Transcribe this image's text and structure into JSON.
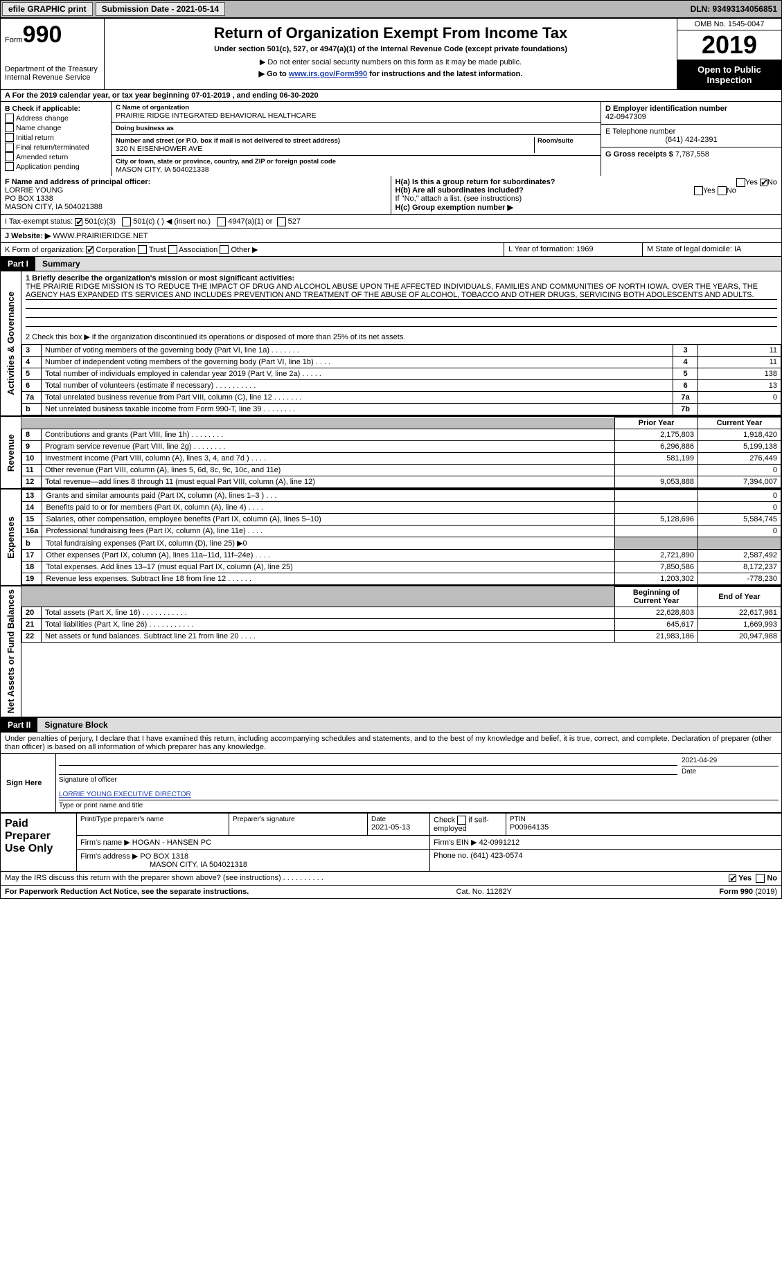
{
  "topbar": {
    "efile_btn": "efile GRAPHIC print",
    "submission_label": "Submission Date - 2021-05-14",
    "dln": "DLN: 93493134056851"
  },
  "header": {
    "form_word": "Form",
    "form_num": "990",
    "title": "Return of Organization Exempt From Income Tax",
    "subtitle": "Under section 501(c), 527, or 4947(a)(1) of the Internal Revenue Code (except private foundations)",
    "note1": "▶ Do not enter social security numbers on this form as it may be made public.",
    "note2_pre": "▶ Go to ",
    "note2_link": "www.irs.gov/Form990",
    "note2_post": " for instructions and the latest information.",
    "dept1": "Department of the Treasury",
    "dept2": "Internal Revenue Service",
    "omb": "OMB No. 1545-0047",
    "year": "2019",
    "public": "Open to Public Inspection"
  },
  "period": {
    "text_a": "A For the 2019 calendar year, or tax year beginning 07-01-2019",
    "text_b": " , and ending 06-30-2020"
  },
  "B": {
    "head": "B Check if applicable:",
    "opts": [
      "Address change",
      "Name change",
      "Initial return",
      "Final return/terminated",
      "Amended return",
      "Application pending"
    ]
  },
  "C": {
    "name_label": "C Name of organization",
    "name": "PRAIRIE RIDGE INTEGRATED BEHAVIORAL HEALTHCARE",
    "dba_label": "Doing business as",
    "dba": "",
    "addr_label": "Number and street (or P.O. box if mail is not delivered to street address)",
    "room_label": "Room/suite",
    "addr": "320 N EISENHOWER AVE",
    "city_label": "City or town, state or province, country, and ZIP or foreign postal code",
    "city": "MASON CITY, IA  504021338"
  },
  "D": {
    "ein_label": "D Employer identification number",
    "ein": "42-0947309",
    "phone_label": "E Telephone number",
    "phone": "(641) 424-2391",
    "gross_label": "G Gross receipts $",
    "gross": "7,787,558"
  },
  "F": {
    "label": "F  Name and address of principal officer:",
    "name": "LORRIE YOUNG",
    "addr1": "PO BOX 1338",
    "addr2": "MASON CITY, IA  504021388"
  },
  "H": {
    "a": "H(a)  Is this a group return for subordinates?",
    "a_yes": "Yes",
    "a_no": "No",
    "b": "H(b)  Are all subordinates included?",
    "b_yes": "Yes",
    "b_no": "No",
    "b_note": "If \"No,\" attach a list. (see instructions)",
    "c": "H(c)  Group exemption number ▶"
  },
  "I": {
    "label": "I    Tax-exempt status:",
    "o1": "501(c)(3)",
    "o2": "501(c) (  ) ◀ (insert no.)",
    "o3": "4947(a)(1) or",
    "o4": "527"
  },
  "J": {
    "label": "J   Website: ▶",
    "value": "WWW.PRAIRIERIDGE.NET"
  },
  "K": {
    "label": "K Form of organization:",
    "o1": "Corporation",
    "o2": "Trust",
    "o3": "Association",
    "o4": "Other ▶"
  },
  "LM": {
    "L": "L Year of formation: 1969",
    "M": "M State of legal domicile: IA"
  },
  "part1": {
    "label": "Part I",
    "title": "Summary"
  },
  "summary": {
    "line1_label": "1   Briefly describe the organization's mission or most significant activities:",
    "line1_text": "THE PRAIRIE RIDGE MISSION IS TO REDUCE THE IMPACT OF DRUG AND ALCOHOL ABUSE UPON THE AFFECTED INDIVIDUALS, FAMILIES AND COMMUNITIES OF NORTH IOWA. OVER THE YEARS, THE AGENCY HAS EXPANDED ITS SERVICES AND INCLUDES PREVENTION AND TREATMENT OF THE ABUSE OF ALCOHOL, TOBACCO AND OTHER DRUGS, SERVICING BOTH ADOLESCENTS AND ADULTS.",
    "line2": "2   Check this box ▶  if the organization discontinued its operations or disposed of more than 25% of its net assets.",
    "rows_top": [
      {
        "n": "3",
        "d": "Number of voting members of the governing body (Part VI, line 1a)   .    .    .    .    .    .    .",
        "b": "3",
        "v": "11"
      },
      {
        "n": "4",
        "d": "Number of independent voting members of the governing body (Part VI, line 1b)   .    .    .    .",
        "b": "4",
        "v": "11"
      },
      {
        "n": "5",
        "d": "Total number of individuals employed in calendar year 2019 (Part V, line 2a)   .    .    .    .    .",
        "b": "5",
        "v": "138"
      },
      {
        "n": "6",
        "d": "Total number of volunteers (estimate if necessary)    .    .    .    .    .    .    .    .    .    .",
        "b": "6",
        "v": "13"
      },
      {
        "n": "7a",
        "d": "Total unrelated business revenue from Part VIII, column (C), line 12    .    .    .    .    .    .    .",
        "b": "7a",
        "v": "0"
      },
      {
        "n": "b",
        "d": "Net unrelated business taxable income from Form 990-T, line 39    .    .    .    .    .    .    .    .",
        "b": "7b",
        "v": ""
      }
    ],
    "col_prior": "Prior Year",
    "col_curr": "Current Year",
    "revenue": [
      {
        "n": "8",
        "d": "Contributions and grants (Part VIII, line 1h)    .    .    .    .    .    .    .    .",
        "p": "2,175,803",
        "c": "1,918,420"
      },
      {
        "n": "9",
        "d": "Program service revenue (Part VIII, line 2g)    .    .    .    .    .    .    .    .",
        "p": "6,296,886",
        "c": "5,199,138"
      },
      {
        "n": "10",
        "d": "Investment income (Part VIII, column (A), lines 3, 4, and 7d )    .    .    .    .",
        "p": "581,199",
        "c": "276,449"
      },
      {
        "n": "11",
        "d": "Other revenue (Part VIII, column (A), lines 5, 6d, 8c, 9c, 10c, and 11e)",
        "p": "",
        "c": "0"
      },
      {
        "n": "12",
        "d": "Total revenue—add lines 8 through 11 (must equal Part VIII, column (A), line 12)",
        "p": "9,053,888",
        "c": "7,394,007"
      }
    ],
    "expenses": [
      {
        "n": "13",
        "d": "Grants and similar amounts paid (Part IX, column (A), lines 1–3 )  .    .    .",
        "p": "",
        "c": "0"
      },
      {
        "n": "14",
        "d": "Benefits paid to or for members (Part IX, column (A), line 4)   .    .    .    .",
        "p": "",
        "c": "0"
      },
      {
        "n": "15",
        "d": "Salaries, other compensation, employee benefits (Part IX, column (A), lines 5–10)",
        "p": "5,128,696",
        "c": "5,584,745"
      },
      {
        "n": "16a",
        "d": "Professional fundraising fees (Part IX, column (A), line 11e)    .    .    .    .",
        "p": "",
        "c": "0"
      },
      {
        "n": "b",
        "d": "Total fundraising expenses (Part IX, column (D), line 25) ▶0",
        "p": "grey",
        "c": "grey"
      },
      {
        "n": "17",
        "d": "Other expenses (Part IX, column (A), lines 11a–11d, 11f–24e)    .    .    .    .",
        "p": "2,721,890",
        "c": "2,587,492"
      },
      {
        "n": "18",
        "d": "Total expenses. Add lines 13–17 (must equal Part IX, column (A), line 25)",
        "p": "7,850,586",
        "c": "8,172,237"
      },
      {
        "n": "19",
        "d": "Revenue less expenses. Subtract line 18 from line 12   .    .    .    .    .    .",
        "p": "1,203,302",
        "c": "-778,230"
      }
    ],
    "col_begin": "Beginning of Current Year",
    "col_end": "End of Year",
    "netassets": [
      {
        "n": "20",
        "d": "Total assets (Part X, line 16)   .    .    .    .    .    .    .    .    .    .    .",
        "p": "22,628,803",
        "c": "22,617,981"
      },
      {
        "n": "21",
        "d": "Total liabilities (Part X, line 26)   .    .    .    .    .    .    .    .    .    .    .",
        "p": "645,617",
        "c": "1,669,993"
      },
      {
        "n": "22",
        "d": "Net assets or fund balances. Subtract line 21 from line 20   .    .    .    .",
        "p": "21,983,186",
        "c": "20,947,988"
      }
    ],
    "tabs": {
      "gov": "Activities & Governance",
      "rev": "Revenue",
      "exp": "Expenses",
      "net": "Net Assets or Fund Balances"
    }
  },
  "part2": {
    "label": "Part II",
    "title": "Signature Block"
  },
  "sigtext": "Under penalties of perjury, I declare that I have examined this return, including accompanying schedules and statements, and to the best of my knowledge and belief, it is true, correct, and complete. Declaration of preparer (other than officer) is based on all information of which preparer has any knowledge.",
  "sign": {
    "here": "Sign Here",
    "sig_label": "Signature of officer",
    "date_label": "Date",
    "date": "2021-04-29",
    "name": "LORRIE YOUNG  EXECUTIVE DIRECTOR",
    "name_label": "Type or print name and title"
  },
  "prep": {
    "here": "Paid Preparer Use Only",
    "c1": "Print/Type preparer's name",
    "c2": "Preparer's signature",
    "c3": "Date",
    "c3v": "2021-05-13",
    "c4a": "Check",
    "c4b": "if self-employed",
    "c5": "PTIN",
    "c5v": "P00964135",
    "firm_label": "Firm's name    ▶",
    "firm": "HOGAN - HANSEN PC",
    "ein_label": "Firm's EIN ▶",
    "ein": "42-0991212",
    "addr_label": "Firm's address ▶",
    "addr1": "PO BOX 1318",
    "addr2": "MASON CITY, IA  504021318",
    "phone_label": "Phone no.",
    "phone": "(641) 423-0574"
  },
  "discuss": {
    "q": "May the IRS discuss this return with the preparer shown above? (see instructions)    .    .    .    .    .    .    .    .    .    .",
    "yes": "Yes",
    "no": "No"
  },
  "footer": {
    "left": "For Paperwork Reduction Act Notice, see the separate instructions.",
    "mid": "Cat. No. 11282Y",
    "right": "Form 990 (2019)"
  }
}
